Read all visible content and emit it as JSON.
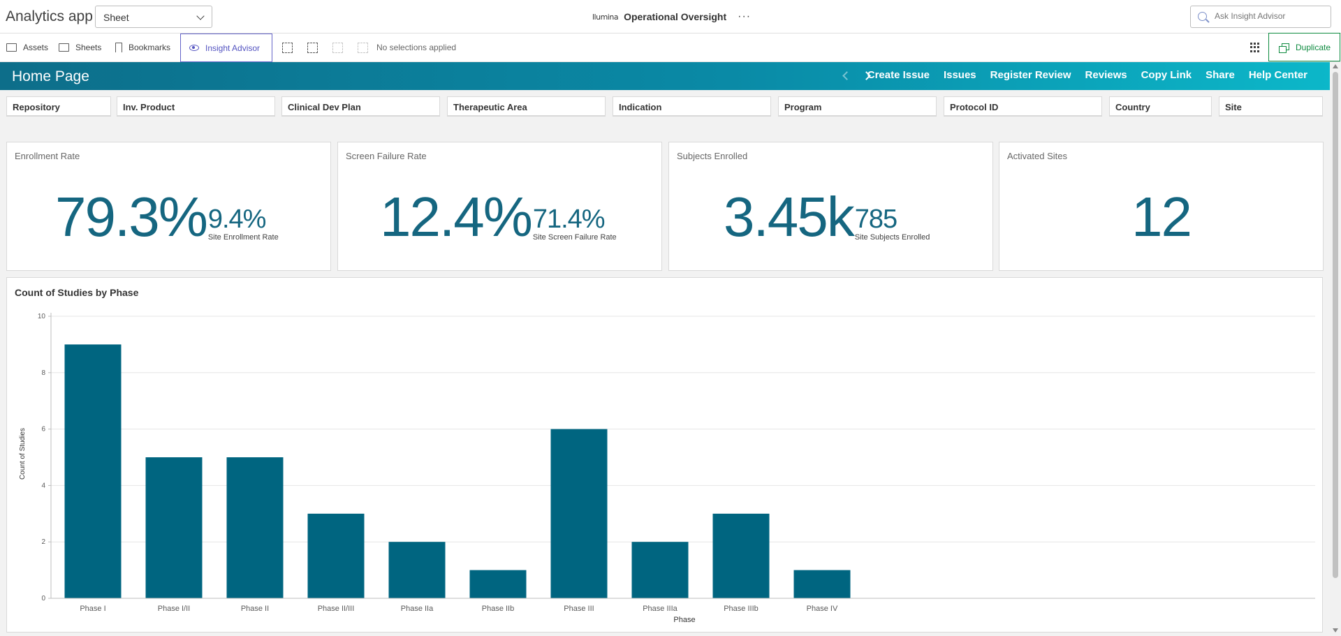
{
  "topbar": {
    "app_name": "Analytics app",
    "sheet_select": "Sheet",
    "brand": "llumina",
    "title": "Operational Oversight",
    "more": "···",
    "ask_placeholder": "Ask Insight Advisor"
  },
  "toolbar": {
    "assets": "Assets",
    "sheets": "Sheets",
    "bookmarks": "Bookmarks",
    "insight_advisor": "Insight Advisor",
    "no_selections": "No selections applied",
    "duplicate": "Duplicate"
  },
  "header": {
    "page_title": "Home Page",
    "links": [
      "Create Issue",
      "Issues",
      "Register Review",
      "Reviews",
      "Copy Link",
      "Share",
      "Help Center"
    ]
  },
  "filters": [
    "Repository",
    "Inv. Product",
    "Clinical Dev Plan",
    "Therapeutic Area",
    "Indication",
    "Program",
    "Protocol ID",
    "Country",
    "Site"
  ],
  "kpis": [
    {
      "title": "Enrollment Rate",
      "value": "79.3%",
      "sub_value": "9.4%",
      "sub_label": "Site Enrollment Rate"
    },
    {
      "title": "Screen Failure Rate",
      "value": "12.4%",
      "sub_value": "71.4%",
      "sub_label": "Site Screen Failure Rate"
    },
    {
      "title": "Subjects Enrolled",
      "value": "3.45k",
      "sub_value": "785",
      "sub_label": "Site Subjects Enrolled"
    },
    {
      "title": "Activated Sites",
      "value": "12",
      "sub_value": "",
      "sub_label": ""
    }
  ],
  "chart_data": {
    "type": "bar",
    "title": "Count of Studies by Phase",
    "xlabel": "Phase",
    "ylabel": "Count of Studies",
    "categories": [
      "Phase I",
      "Phase I/II",
      "Phase II",
      "Phase II/III",
      "Phase IIa",
      "Phase IIb",
      "Phase III",
      "Phase IIIa",
      "Phase IIIb",
      "Phase IV"
    ],
    "values": [
      9,
      5,
      5,
      3,
      2,
      1,
      6,
      2,
      3,
      1
    ],
    "ylim": [
      0,
      10
    ],
    "yticks": [
      0,
      2,
      4,
      6,
      8,
      10
    ],
    "grid": true,
    "bar_color": "#006580"
  },
  "colors": {
    "accent_teal": "#156680",
    "insight_purple": "#5252c0",
    "duplicate_green": "#0d8a3f"
  }
}
